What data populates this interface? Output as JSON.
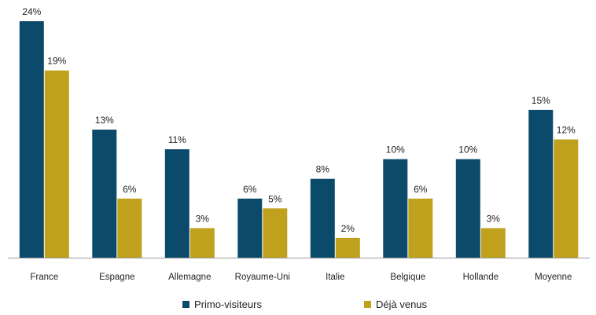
{
  "chart_data": {
    "type": "bar",
    "title": "",
    "xlabel": "",
    "ylabel": "",
    "ylim": [
      0,
      24
    ],
    "grid": false,
    "legend_position": "bottom",
    "value_suffix": "%",
    "categories": [
      "France",
      "Espagne",
      "Allemagne",
      "Royaume-Uni",
      "Italie",
      "Belgique",
      "Hollande",
      "Moyenne"
    ],
    "series": [
      {
        "name": "Primo-visiteurs",
        "color": "#0b4a6b",
        "values": [
          24,
          13,
          11,
          6,
          8,
          10,
          10,
          15
        ]
      },
      {
        "name": "Déjà venus",
        "color": "#bfa11e",
        "values": [
          19,
          6,
          3,
          5,
          2,
          6,
          3,
          12
        ]
      }
    ]
  }
}
